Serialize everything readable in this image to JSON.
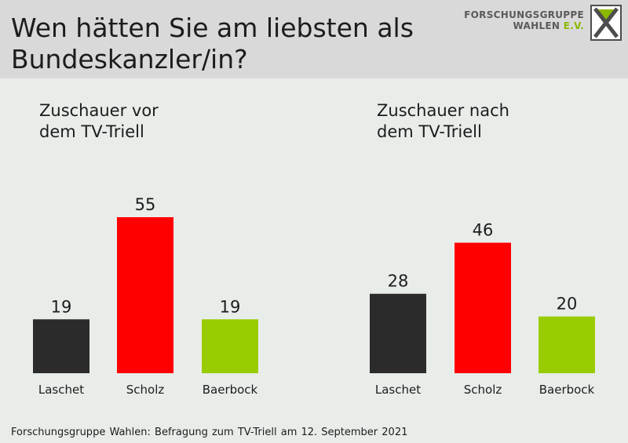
{
  "header": {
    "title": "Wen hätten Sie am liebsten als\nBundeskanzler/in?",
    "logo": {
      "line1": "FORSCHUNGSGRUPPE",
      "line2_main": "WAHLEN ",
      "line2_accent": "E.V."
    }
  },
  "footer": {
    "source": "Forschungsgruppe Wahlen: Befragung zum TV-Triell am 12. September 2021"
  },
  "colors": {
    "Laschet": "#2b2b2b",
    "Scholz": "#ff0000",
    "Baerbock": "#99cc00",
    "logo_accent": "#8bb800"
  },
  "chart_data": [
    {
      "type": "bar",
      "title": "Zuschauer vor\ndem TV-Triell",
      "categories": [
        "Laschet",
        "Scholz",
        "Baerbock"
      ],
      "values": [
        19,
        55,
        19
      ],
      "grid": false
    },
    {
      "type": "bar",
      "title": "Zuschauer nach\ndem TV-Triell",
      "categories": [
        "Laschet",
        "Scholz",
        "Baerbock"
      ],
      "values": [
        28,
        46,
        20
      ],
      "grid": false
    }
  ]
}
